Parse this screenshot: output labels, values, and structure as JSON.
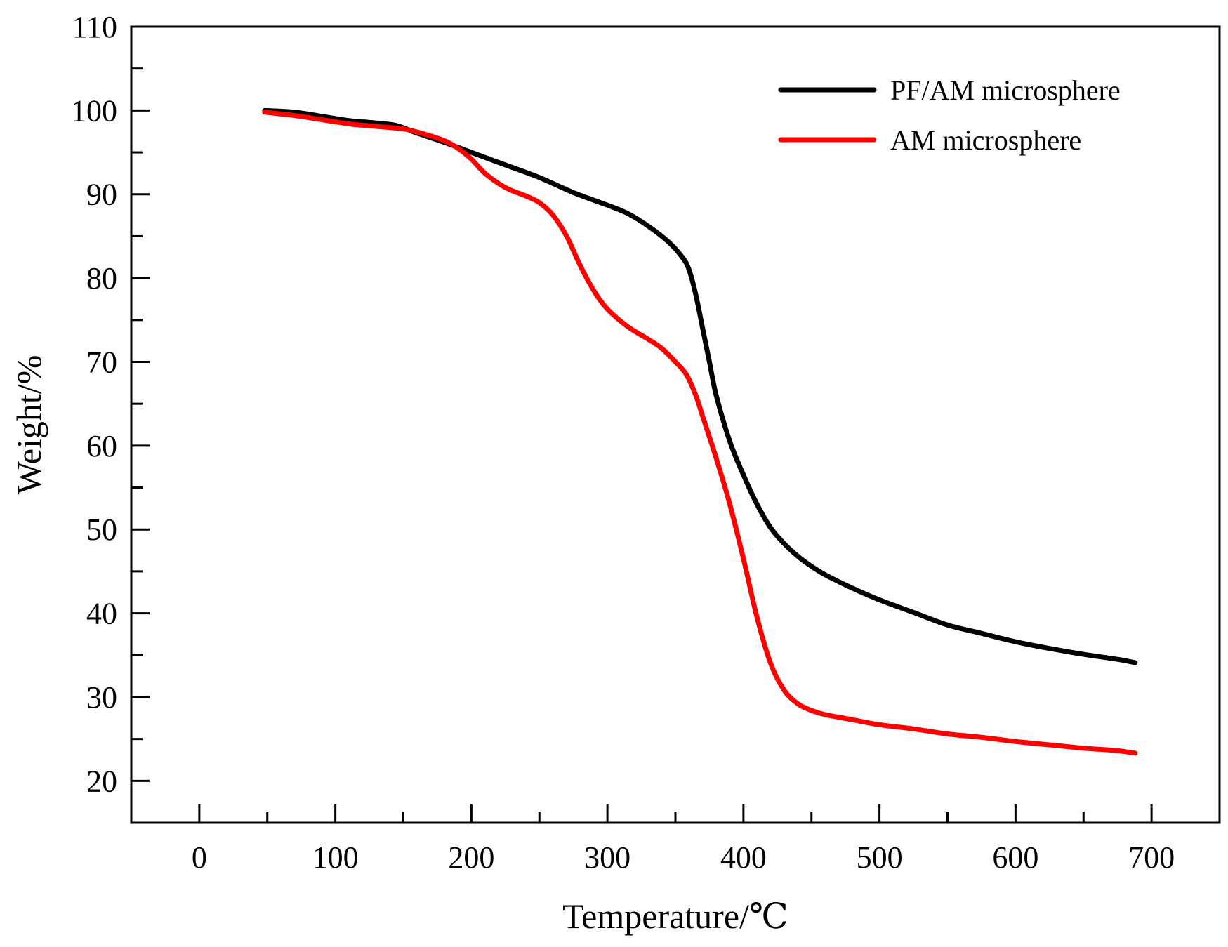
{
  "chart_data": {
    "type": "line",
    "title": "",
    "xlabel": "Temperature/℃",
    "ylabel": "Weight/%",
    "xlim": [
      -50,
      750
    ],
    "ylim": [
      15,
      110
    ],
    "xticks": [
      0,
      100,
      200,
      300,
      400,
      500,
      600,
      700
    ],
    "yticks": [
      20,
      30,
      40,
      50,
      60,
      70,
      80,
      90,
      100,
      110
    ],
    "x_minor_step": 50,
    "y_minor_step": 5,
    "grid": false,
    "legend_position": "top-right",
    "series": [
      {
        "name": "PF/AM microsphere",
        "color": "#000000",
        "x": [
          48,
          70,
          90,
          110,
          130,
          145,
          160,
          180,
          200,
          225,
          250,
          275,
          300,
          315,
          330,
          345,
          355,
          360,
          365,
          370,
          375,
          380,
          390,
          400,
          410,
          420,
          430,
          440,
          450,
          460,
          480,
          500,
          525,
          550,
          575,
          600,
          625,
          650,
          675,
          688
        ],
        "y": [
          100,
          99.8,
          99.3,
          98.8,
          98.5,
          98.2,
          97.3,
          96.2,
          95,
          93.5,
          92,
          90.2,
          88.7,
          87.7,
          86.2,
          84.3,
          82.5,
          81,
          78,
          74,
          70,
          66,
          60.5,
          56.5,
          53,
          50.2,
          48.3,
          46.8,
          45.6,
          44.6,
          43,
          41.6,
          40.1,
          38.6,
          37.6,
          36.6,
          35.8,
          35.1,
          34.5,
          34.1
        ]
      },
      {
        "name": "AM microsphere",
        "color": "#ff0000",
        "x": [
          48,
          70,
          90,
          110,
          130,
          150,
          165,
          180,
          190,
          200,
          210,
          225,
          240,
          250,
          260,
          270,
          280,
          290,
          300,
          315,
          330,
          340,
          350,
          358,
          365,
          370,
          380,
          390,
          400,
          410,
          420,
          430,
          440,
          450,
          460,
          480,
          500,
          525,
          550,
          575,
          600,
          625,
          650,
          675,
          688
        ],
        "y": [
          99.8,
          99.4,
          98.9,
          98.4,
          98.1,
          97.8,
          97.2,
          96.4,
          95.5,
          94.2,
          92.5,
          90.8,
          89.8,
          89,
          87.5,
          85,
          81.5,
          78.5,
          76.3,
          74.2,
          72.7,
          71.6,
          70,
          68.5,
          66,
          63.5,
          58.5,
          53,
          46.5,
          39.5,
          34,
          30.8,
          29.2,
          28.4,
          27.9,
          27.3,
          26.7,
          26.2,
          25.6,
          25.2,
          24.7,
          24.3,
          23.9,
          23.6,
          23.3
        ]
      }
    ]
  }
}
